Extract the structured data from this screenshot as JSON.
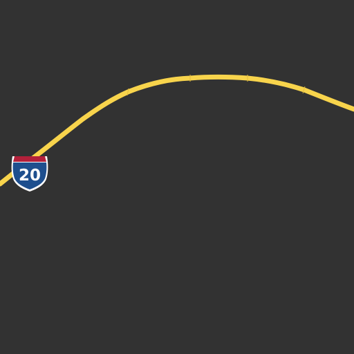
{
  "map": {
    "background_color": "#323232",
    "highway": {
      "color": "#f8d44c",
      "segment_joint_color": "#e3bd3e"
    },
    "route_shield": {
      "type": "interstate",
      "route_number": "20",
      "top_color": "#b3203a",
      "body_color": "#1e4f8e",
      "outline_color": "#ffffff",
      "text_color": "#ffffff",
      "icon": "interstate-shield-icon"
    }
  }
}
